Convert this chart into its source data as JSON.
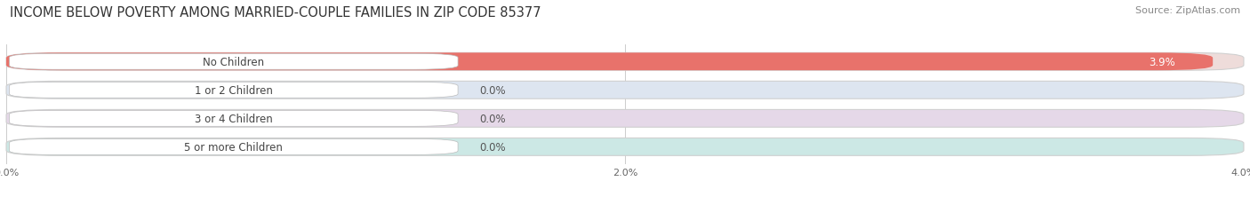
{
  "title": "INCOME BELOW POVERTY AMONG MARRIED-COUPLE FAMILIES IN ZIP CODE 85377",
  "source": "Source: ZipAtlas.com",
  "categories": [
    "No Children",
    "1 or 2 Children",
    "3 or 4 Children",
    "5 or more Children"
  ],
  "values": [
    3.9,
    0.0,
    0.0,
    0.0
  ],
  "bar_colors": [
    "#e8726b",
    "#9eb3d4",
    "#c09ec0",
    "#6ec4bc"
  ],
  "bar_bg_colors": [
    "#eedcda",
    "#dde5f0",
    "#e5d8e8",
    "#cce8e5"
  ],
  "xlim": [
    0,
    4.0
  ],
  "xticks": [
    0.0,
    2.0,
    4.0
  ],
  "xtick_labels": [
    "0.0%",
    "2.0%",
    "4.0%"
  ],
  "background_color": "#ffffff",
  "title_fontsize": 10.5,
  "source_fontsize": 8,
  "label_fontsize": 8.5,
  "value_fontsize": 8.5
}
